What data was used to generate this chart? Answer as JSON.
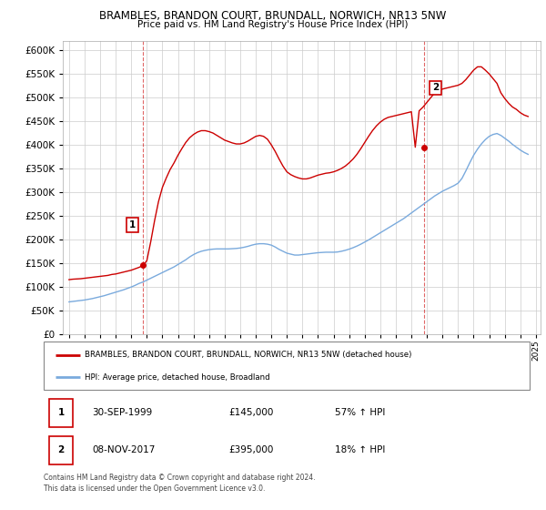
{
  "title": "BRAMBLES, BRANDON COURT, BRUNDALL, NORWICH, NR13 5NW",
  "subtitle": "Price paid vs. HM Land Registry's House Price Index (HPI)",
  "legend_line1": "BRAMBLES, BRANDON COURT, BRUNDALL, NORWICH, NR13 5NW (detached house)",
  "legend_line2": "HPI: Average price, detached house, Broadland",
  "annotation1_label": "1",
  "annotation1_date": "30-SEP-1999",
  "annotation1_price": "£145,000",
  "annotation1_hpi": "57% ↑ HPI",
  "annotation2_label": "2",
  "annotation2_date": "08-NOV-2017",
  "annotation2_price": "£395,000",
  "annotation2_hpi": "18% ↑ HPI",
  "footer1": "Contains HM Land Registry data © Crown copyright and database right 2024.",
  "footer2": "This data is licensed under the Open Government Licence v3.0.",
  "red_color": "#cc0000",
  "blue_color": "#7aaadd",
  "background_color": "#ffffff",
  "grid_color": "#cccccc",
  "ylim": [
    0,
    620000
  ],
  "yticks": [
    0,
    50000,
    100000,
    150000,
    200000,
    250000,
    300000,
    350000,
    400000,
    450000,
    500000,
    550000,
    600000
  ],
  "red_x": [
    1995.0,
    1995.25,
    1995.5,
    1995.75,
    1996.0,
    1996.25,
    1996.5,
    1996.75,
    1997.0,
    1997.25,
    1997.5,
    1997.75,
    1998.0,
    1998.25,
    1998.5,
    1998.75,
    1999.0,
    1999.25,
    1999.5,
    1999.75,
    2000.0,
    2000.25,
    2000.5,
    2000.75,
    2001.0,
    2001.25,
    2001.5,
    2001.75,
    2002.0,
    2002.25,
    2002.5,
    2002.75,
    2003.0,
    2003.25,
    2003.5,
    2003.75,
    2004.0,
    2004.25,
    2004.5,
    2004.75,
    2005.0,
    2005.25,
    2005.5,
    2005.75,
    2006.0,
    2006.25,
    2006.5,
    2006.75,
    2007.0,
    2007.25,
    2007.5,
    2007.75,
    2008.0,
    2008.25,
    2008.5,
    2008.75,
    2009.0,
    2009.25,
    2009.5,
    2009.75,
    2010.0,
    2010.25,
    2010.5,
    2010.75,
    2011.0,
    2011.25,
    2011.5,
    2011.75,
    2012.0,
    2012.25,
    2012.5,
    2012.75,
    2013.0,
    2013.25,
    2013.5,
    2013.75,
    2014.0,
    2014.25,
    2014.5,
    2014.75,
    2015.0,
    2015.25,
    2015.5,
    2015.75,
    2016.0,
    2016.25,
    2016.5,
    2016.75,
    2017.0,
    2017.25,
    2017.5,
    2017.75,
    2018.0,
    2018.25,
    2018.5,
    2018.75,
    2019.0,
    2019.25,
    2019.5,
    2019.75,
    2020.0,
    2020.25,
    2020.5,
    2020.75,
    2021.0,
    2021.25,
    2021.5,
    2021.75,
    2022.0,
    2022.25,
    2022.5,
    2022.75,
    2023.0,
    2023.25,
    2023.5,
    2023.75,
    2024.0,
    2024.25,
    2024.5
  ],
  "red_y": [
    115000,
    116000,
    116500,
    117000,
    118000,
    119000,
    120000,
    121000,
    122000,
    123000,
    124000,
    126000,
    127000,
    129000,
    131000,
    133000,
    135000,
    138000,
    141000,
    145000,
    155000,
    195000,
    240000,
    280000,
    310000,
    330000,
    348000,
    362000,
    378000,
    392000,
    405000,
    415000,
    422000,
    427000,
    430000,
    430000,
    428000,
    425000,
    420000,
    415000,
    410000,
    407000,
    404000,
    402000,
    402000,
    404000,
    408000,
    413000,
    418000,
    420000,
    418000,
    412000,
    400000,
    386000,
    370000,
    355000,
    343000,
    337000,
    333000,
    330000,
    328000,
    328000,
    330000,
    333000,
    336000,
    338000,
    340000,
    341000,
    343000,
    346000,
    350000,
    355000,
    362000,
    370000,
    380000,
    392000,
    405000,
    418000,
    430000,
    440000,
    448000,
    454000,
    458000,
    460000,
    462000,
    464000,
    466000,
    468000,
    470000,
    395000,
    472000,
    480000,
    490000,
    500000,
    510000,
    515000,
    518000,
    520000,
    522000,
    524000,
    526000,
    530000,
    538000,
    548000,
    558000,
    565000,
    565000,
    558000,
    550000,
    540000,
    530000,
    510000,
    498000,
    488000,
    480000,
    475000,
    468000,
    463000,
    460000
  ],
  "blue_x": [
    1995.0,
    1995.25,
    1995.5,
    1995.75,
    1996.0,
    1996.25,
    1996.5,
    1996.75,
    1997.0,
    1997.25,
    1997.5,
    1997.75,
    1998.0,
    1998.25,
    1998.5,
    1998.75,
    1999.0,
    1999.25,
    1999.5,
    1999.75,
    2000.0,
    2000.25,
    2000.5,
    2000.75,
    2001.0,
    2001.25,
    2001.5,
    2001.75,
    2002.0,
    2002.25,
    2002.5,
    2002.75,
    2003.0,
    2003.25,
    2003.5,
    2003.75,
    2004.0,
    2004.25,
    2004.5,
    2004.75,
    2005.0,
    2005.25,
    2005.5,
    2005.75,
    2006.0,
    2006.25,
    2006.5,
    2006.75,
    2007.0,
    2007.25,
    2007.5,
    2007.75,
    2008.0,
    2008.25,
    2008.5,
    2008.75,
    2009.0,
    2009.25,
    2009.5,
    2009.75,
    2010.0,
    2010.25,
    2010.5,
    2010.75,
    2011.0,
    2011.25,
    2011.5,
    2011.75,
    2012.0,
    2012.25,
    2012.5,
    2012.75,
    2013.0,
    2013.25,
    2013.5,
    2013.75,
    2014.0,
    2014.25,
    2014.5,
    2014.75,
    2015.0,
    2015.25,
    2015.5,
    2015.75,
    2016.0,
    2016.25,
    2016.5,
    2016.75,
    2017.0,
    2017.25,
    2017.5,
    2017.75,
    2018.0,
    2018.25,
    2018.5,
    2018.75,
    2019.0,
    2019.25,
    2019.5,
    2019.75,
    2020.0,
    2020.25,
    2020.5,
    2020.75,
    2021.0,
    2021.25,
    2021.5,
    2021.75,
    2022.0,
    2022.25,
    2022.5,
    2022.75,
    2023.0,
    2023.25,
    2023.5,
    2023.75,
    2024.0,
    2024.25,
    2024.5
  ],
  "blue_y": [
    68000,
    69000,
    70000,
    71000,
    72000,
    73500,
    75000,
    77000,
    79000,
    81000,
    83500,
    86000,
    88500,
    91000,
    93500,
    96500,
    99500,
    103000,
    107000,
    110000,
    114000,
    118000,
    122000,
    126000,
    130000,
    134000,
    138000,
    142000,
    147000,
    152000,
    157000,
    163000,
    168000,
    172000,
    175000,
    177000,
    178500,
    179500,
    180000,
    180000,
    180000,
    180000,
    180500,
    181000,
    182000,
    183500,
    185500,
    188000,
    190000,
    191000,
    191000,
    190000,
    188000,
    184000,
    179000,
    175000,
    171000,
    169000,
    167000,
    167000,
    168000,
    169000,
    170000,
    171000,
    172000,
    172500,
    173000,
    173000,
    173000,
    173500,
    175000,
    177000,
    179500,
    182500,
    186000,
    190000,
    194500,
    199000,
    204000,
    209000,
    214000,
    219000,
    224000,
    229000,
    234000,
    239000,
    244000,
    250000,
    256000,
    262000,
    268000,
    274000,
    280000,
    286000,
    292000,
    297000,
    302000,
    306000,
    310000,
    314000,
    319000,
    329000,
    345000,
    362000,
    378000,
    391000,
    402000,
    411000,
    418000,
    422000,
    424000,
    420000,
    414000,
    408000,
    401000,
    395000,
    389000,
    384000,
    380000
  ],
  "ann1_x": 1999.75,
  "ann1_y": 145000,
  "ann2_x": 2017.83,
  "ann2_y": 395000,
  "xlim_left": 1994.6,
  "xlim_right": 2025.3
}
